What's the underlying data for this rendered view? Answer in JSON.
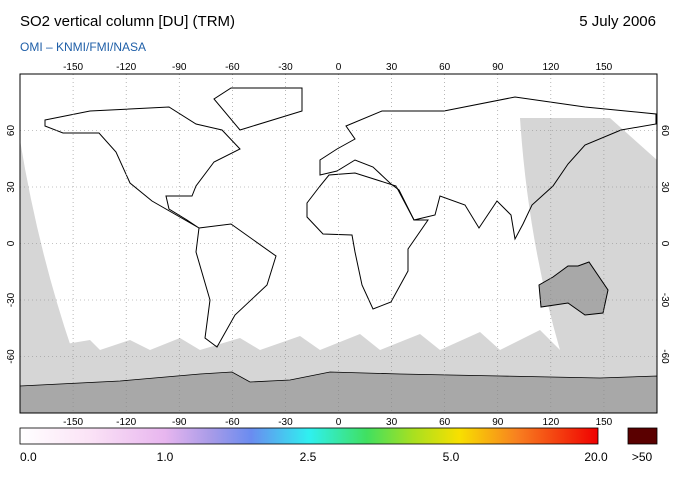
{
  "header": {
    "title": "SO2 vertical column [DU] (TRM)",
    "date": "5 July 2006",
    "subtitle": "OMI  –  KNMI/FMI/NASA"
  },
  "map": {
    "longitude_labels": [
      "-150",
      "-120",
      "-90",
      "-60",
      "-30",
      "0",
      "30",
      "60",
      "90",
      "120",
      "150"
    ],
    "latitude_labels": [
      "60",
      "30",
      "0",
      "-30",
      "-60"
    ]
  },
  "colorbar": {
    "labels": [
      "0.0",
      "1.0",
      "2.5",
      "5.0",
      "20.0"
    ],
    "overflow_label": ">50"
  }
}
